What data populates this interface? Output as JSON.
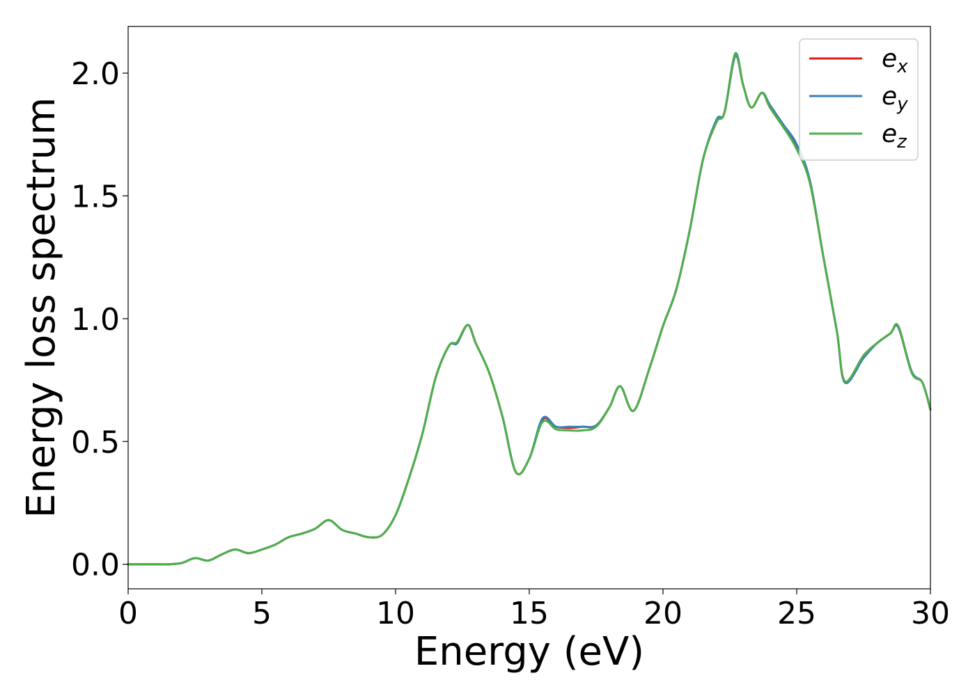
{
  "chart_data": {
    "type": "line",
    "xlabel": "Energy (eV)",
    "ylabel": "Energy loss spectrum",
    "xlim": [
      0,
      30
    ],
    "ylim": [
      -0.1,
      2.19
    ],
    "xticks": [
      0,
      5,
      10,
      15,
      20,
      25,
      30
    ],
    "xtick_labels": [
      "0",
      "5",
      "10",
      "15",
      "20",
      "25",
      "30"
    ],
    "yticks": [
      0.0,
      0.5,
      1.0,
      1.5,
      2.0
    ],
    "ytick_labels": [
      "0.0",
      "0.5",
      "1.0",
      "1.5",
      "2.0"
    ],
    "grid": false,
    "legend_position": "top-right",
    "x": [
      0,
      1,
      1.5,
      2,
      2.5,
      3,
      3.5,
      4,
      4.5,
      5,
      5.5,
      6,
      6.5,
      7,
      7.5,
      8,
      8.5,
      9,
      9.5,
      10,
      10.5,
      11,
      11.5,
      12,
      12.3,
      12.7,
      13,
      13.5,
      14,
      14.5,
      15,
      15.5,
      16,
      16.5,
      17,
      17.5,
      18,
      18.4,
      18.9,
      19.5,
      20,
      20.5,
      21,
      21.5,
      22,
      22.3,
      22.7,
      23,
      23.3,
      23.7,
      24,
      24.5,
      25,
      25.5,
      26,
      26.5,
      26.8,
      27.5,
      28,
      28.5,
      28.8,
      29.3,
      29.7,
      30
    ],
    "series": [
      {
        "name": "e",
        "name_sub": "x",
        "color": "#e41a1c",
        "values": [
          0.0,
          0.0,
          0.0,
          0.005,
          0.025,
          0.015,
          0.04,
          0.06,
          0.045,
          0.06,
          0.08,
          0.11,
          0.125,
          0.145,
          0.18,
          0.14,
          0.125,
          0.11,
          0.12,
          0.2,
          0.35,
          0.53,
          0.76,
          0.89,
          0.9,
          0.975,
          0.9,
          0.78,
          0.6,
          0.375,
          0.43,
          0.59,
          0.56,
          0.555,
          0.56,
          0.565,
          0.64,
          0.725,
          0.625,
          0.8,
          0.97,
          1.12,
          1.36,
          1.65,
          1.8,
          1.84,
          2.07,
          1.95,
          1.86,
          1.92,
          1.86,
          1.78,
          1.7,
          1.55,
          1.25,
          0.95,
          0.745,
          0.85,
          0.9,
          0.94,
          0.965,
          0.78,
          0.74,
          0.63
        ]
      },
      {
        "name": "e",
        "name_sub": "y",
        "color": "#377eb8",
        "values": [
          0.0,
          0.0,
          0.0,
          0.005,
          0.025,
          0.015,
          0.04,
          0.06,
          0.045,
          0.06,
          0.08,
          0.11,
          0.125,
          0.145,
          0.18,
          0.14,
          0.125,
          0.11,
          0.12,
          0.2,
          0.35,
          0.53,
          0.76,
          0.89,
          0.9,
          0.975,
          0.9,
          0.78,
          0.6,
          0.375,
          0.43,
          0.595,
          0.56,
          0.56,
          0.56,
          0.565,
          0.64,
          0.725,
          0.625,
          0.8,
          0.97,
          1.12,
          1.36,
          1.65,
          1.81,
          1.84,
          2.07,
          1.95,
          1.86,
          1.92,
          1.87,
          1.79,
          1.71,
          1.56,
          1.25,
          0.95,
          0.74,
          0.84,
          0.9,
          0.94,
          0.965,
          0.785,
          0.74,
          0.63
        ]
      },
      {
        "name": "e",
        "name_sub": "z",
        "color": "#4daf4a",
        "values": [
          0.0,
          0.0,
          0.0,
          0.005,
          0.025,
          0.015,
          0.04,
          0.06,
          0.045,
          0.06,
          0.08,
          0.11,
          0.125,
          0.145,
          0.18,
          0.14,
          0.125,
          0.11,
          0.12,
          0.2,
          0.35,
          0.53,
          0.76,
          0.89,
          0.905,
          0.975,
          0.9,
          0.78,
          0.6,
          0.375,
          0.43,
          0.58,
          0.55,
          0.545,
          0.545,
          0.56,
          0.64,
          0.725,
          0.625,
          0.8,
          0.97,
          1.12,
          1.36,
          1.65,
          1.8,
          1.84,
          2.08,
          1.95,
          1.86,
          1.92,
          1.86,
          1.78,
          1.69,
          1.55,
          1.25,
          0.95,
          0.745,
          0.85,
          0.9,
          0.94,
          0.97,
          0.78,
          0.74,
          0.63
        ]
      }
    ]
  }
}
